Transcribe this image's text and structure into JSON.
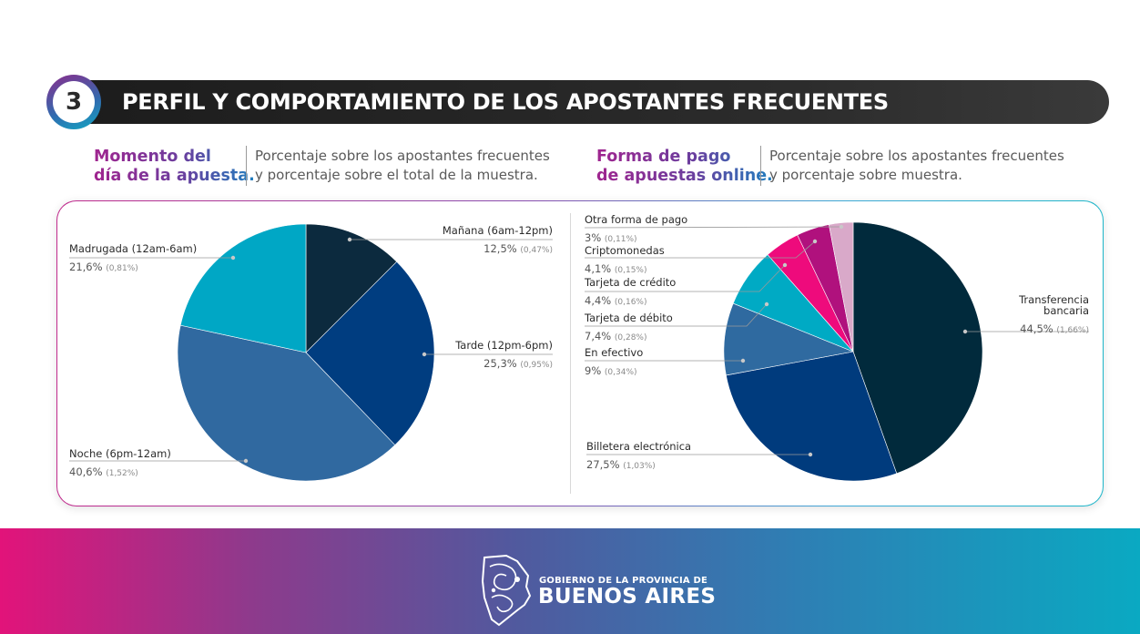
{
  "section": {
    "number": "3",
    "title": "PERFIL Y COMPORTAMIENTO DE LOS APOSTANTES FRECUENTES"
  },
  "left": {
    "title_line1": "Momento del",
    "title_line2": "día de la apuesta.",
    "desc_line1": "Porcentaje sobre los apostantes frecuentes",
    "desc_line2": "y porcentaje sobre el total de la muestra."
  },
  "right": {
    "title_line1": "Forma de pago",
    "title_line2": "de apuestas online.",
    "desc_line1": "Porcentaje sobre los apostantes frecuentes",
    "desc_line2": "y porcentaje sobre  muestra."
  },
  "chart_data": [
    {
      "type": "pie",
      "title": "Momento del día de la apuesta.",
      "start_angle_deg": 0,
      "direction": "clockwise",
      "slices": [
        {
          "name": "Mañana (6am-12pm)",
          "value": 12.5,
          "pct_text": "12,5%",
          "sub_text": "(0,47%)",
          "color": "#0c2a3e"
        },
        {
          "name": "Tarde (12pm-6pm)",
          "value": 25.3,
          "pct_text": "25,3%",
          "sub_text": "(0,95%)",
          "color": "#003d80"
        },
        {
          "name": "Noche (6pm-12am)",
          "value": 40.6,
          "pct_text": "40,6%",
          "sub_text": "(1,52%)",
          "color": "#3069a0"
        },
        {
          "name": "Madrugada (12am-6am)",
          "value": 21.6,
          "pct_text": "21,6%",
          "sub_text": "(0,81%)",
          "color": "#00a7c5"
        }
      ]
    },
    {
      "type": "pie",
      "title": "Forma de pago de apuestas online.",
      "start_angle_deg": 0,
      "direction": "clockwise",
      "slices": [
        {
          "name": "Transferencia bancaria",
          "name_lines": [
            "Transferencia",
            "bancaria"
          ],
          "value": 44.5,
          "pct_text": "44,5%",
          "sub_text": "(1,66%)",
          "color": "#012a3c"
        },
        {
          "name": "Billetera electrónica",
          "value": 27.5,
          "pct_text": "27,5%",
          "sub_text": "(1,03%)",
          "color": "#003b7d"
        },
        {
          "name": "En efectivo",
          "value": 9,
          "pct_text": "9%",
          "sub_text": "(0,34%)",
          "color": "#2f6aa0"
        },
        {
          "name": "Tarjeta de débito",
          "value": 7.4,
          "pct_text": "7,4%",
          "sub_text": "(0,28%)",
          "color": "#00aac4"
        },
        {
          "name": "Tarjeta de crédito",
          "value": 4.4,
          "pct_text": "4,4%",
          "sub_text": "(0,16%)",
          "color": "#ee0b7c"
        },
        {
          "name": "Criptomonedas",
          "value": 4.1,
          "pct_text": "4,1%",
          "sub_text": "(0,15%)",
          "color": "#b0117d"
        },
        {
          "name": "Otra forma de pago",
          "value": 3,
          "pct_text": "3%",
          "sub_text": "(0,11%)",
          "color": "#d9a9c9"
        }
      ]
    }
  ],
  "footer": {
    "line1": "GOBIERNO DE LA PROVINCIA DE",
    "line2": "BUENOS AIRES"
  }
}
